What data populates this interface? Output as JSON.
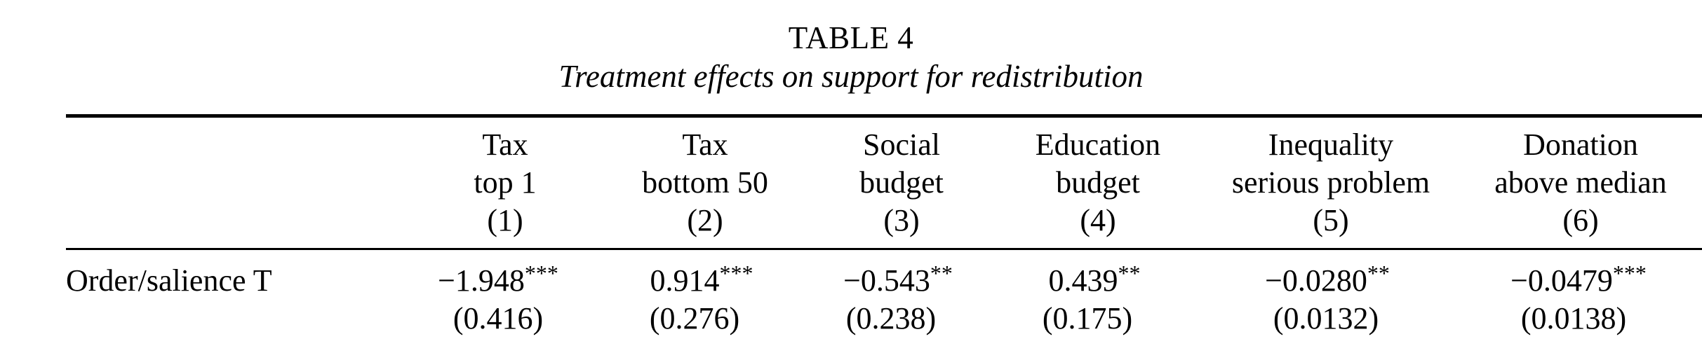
{
  "table": {
    "label": "TABLE 4",
    "title": "Treatment effects on support for redistribution",
    "columns": [
      {
        "line1": "Tax",
        "line2": "top 1",
        "number": "(1)"
      },
      {
        "line1": "Tax",
        "line2": "bottom 50",
        "number": "(2)"
      },
      {
        "line1": "Social",
        "line2": "budget",
        "number": "(3)"
      },
      {
        "line1": "Education",
        "line2": "budget",
        "number": "(4)"
      },
      {
        "line1": "Inequality",
        "line2": "serious problem",
        "number": "(5)"
      },
      {
        "line1": "Donation",
        "line2": "above median",
        "number": "(6)"
      }
    ],
    "rows": [
      {
        "label": "Order/salience T",
        "cells": [
          {
            "coef": "−1.948",
            "stars": "***",
            "se": "(0.416)"
          },
          {
            "coef": "0.914",
            "stars": "***",
            "se": "(0.276)"
          },
          {
            "coef": "−0.543",
            "stars": "**",
            "se": "(0.238)"
          },
          {
            "coef": "0.439",
            "stars": "**",
            "se": "(0.175)"
          },
          {
            "coef": "−0.0280",
            "stars": "**",
            "se": "(0.0132)"
          },
          {
            "coef": "−0.0479",
            "stars": "***",
            "se": "(0.0138)"
          }
        ]
      }
    ]
  }
}
